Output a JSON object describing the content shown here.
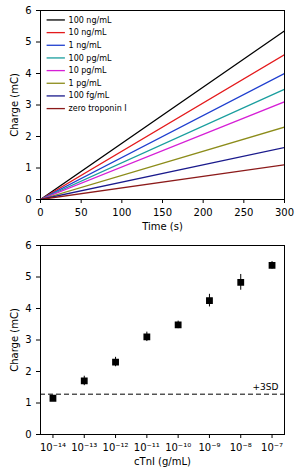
{
  "chart_data": [
    {
      "type": "line",
      "x_label": "Time (s)",
      "y_label": "Charge (mC)",
      "x": [
        0,
        300
      ],
      "series": [
        {
          "name": "100 ng/mL",
          "color": "#000000",
          "values": [
            0,
            5.35
          ]
        },
        {
          "name": "10 ng/mL",
          "color": "#e41a1c",
          "values": [
            0,
            4.6
          ]
        },
        {
          "name": "1 ng/mL",
          "color": "#1f3fcf",
          "values": [
            0,
            4.0
          ]
        },
        {
          "name": "100 pg/mL",
          "color": "#1a9e9e",
          "values": [
            0,
            3.5
          ]
        },
        {
          "name": "10 pg/mL",
          "color": "#d61fd6",
          "values": [
            0,
            3.1
          ]
        },
        {
          "name": "1 pg/mL",
          "color": "#8c8c1a",
          "values": [
            0,
            2.3
          ]
        },
        {
          "name": "100 fg/mL",
          "color": "#1a1a8c",
          "values": [
            0,
            1.65
          ]
        },
        {
          "name": "zero troponin I",
          "color": "#8c1a1a",
          "values": [
            0,
            1.1
          ]
        }
      ],
      "xlim": [
        0,
        300
      ],
      "xticks": [
        0,
        50,
        100,
        150,
        200,
        250,
        300
      ],
      "ylim": [
        0,
        6
      ],
      "yticks": [
        0,
        1,
        2,
        3,
        4,
        5,
        6
      ],
      "legend": "upper left",
      "grid": false
    },
    {
      "type": "scatter",
      "x_label": "cTnI (g/mL)",
      "y_label": "Charge (mC)",
      "x": [
        1e-14,
        1e-13,
        1e-12,
        1e-11,
        1e-10,
        1e-09,
        1e-08,
        1e-07
      ],
      "values": [
        1.15,
        1.7,
        2.3,
        3.1,
        3.48,
        4.25,
        4.83,
        5.37
      ],
      "errors": [
        0.05,
        0.15,
        0.15,
        0.15,
        0.12,
        0.2,
        0.25,
        0.12
      ],
      "color": "#000000",
      "marker": "square",
      "log": "x",
      "xlim": [
        4e-15,
        2.5e-07
      ],
      "xticks": [
        {
          "value": 1e-14,
          "label": "10⁻¹⁴"
        },
        {
          "value": 1e-13,
          "label": "10⁻¹³"
        },
        {
          "value": 1e-12,
          "label": "10⁻¹²"
        },
        {
          "value": 1e-11,
          "label": "10⁻¹¹"
        },
        {
          "value": 1e-10,
          "label": "10⁻¹⁰"
        },
        {
          "value": 1e-09,
          "label": "10⁻⁹"
        },
        {
          "value": 1e-08,
          "label": "10⁻⁸"
        },
        {
          "value": 1e-07,
          "label": "10⁻⁷"
        }
      ],
      "ylim": [
        0,
        6
      ],
      "yticks": [
        0,
        1,
        2,
        3,
        4,
        5,
        6
      ],
      "threshold": {
        "value": 1.28,
        "label": "+3SD",
        "line_style": "dashed"
      },
      "grid": false
    }
  ]
}
